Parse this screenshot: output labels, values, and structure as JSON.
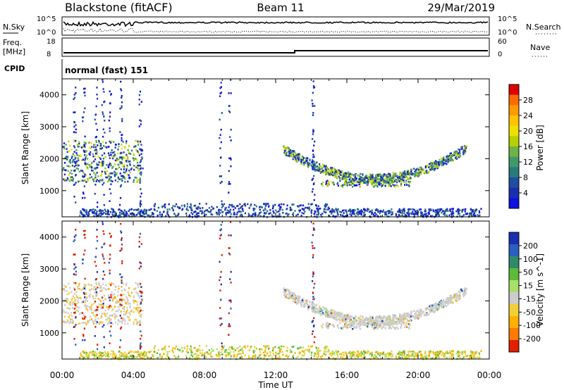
{
  "header": {
    "title": "Blackstone (fitACF)",
    "beam": "Beam 11",
    "date": "29/Mar/2019"
  },
  "noise_panel": {
    "left_label": "N.Sky",
    "right_label": "N.Search",
    "left_ticks": [
      "10^5",
      "10^0"
    ],
    "right_ticks": [
      "10^5",
      "10^0"
    ]
  },
  "freq_panel": {
    "label_line1": "Freq.",
    "label_line2": "[MHz]",
    "ticks": [
      "18",
      "8"
    ],
    "right_label": "Nave",
    "right_ticks": [
      "60",
      "0"
    ]
  },
  "cpid": {
    "label": "CPID",
    "value": "normal (fast) 151"
  },
  "axes": {
    "ylabel": "Slant Range [km]",
    "xlabel": "Time UT",
    "yticks": [
      "4000",
      "3000",
      "2000",
      "1000"
    ],
    "xticks": [
      "00:00",
      "04:00",
      "08:00",
      "12:00",
      "16:00",
      "20:00",
      "00:00"
    ]
  },
  "power_scale": {
    "label": "Power [dB]",
    "ticks": [
      "28",
      "24",
      "20",
      "16",
      "12",
      "8",
      "4"
    ],
    "colors": [
      "#e10000",
      "#ff6a00",
      "#ff9a00",
      "#ffc400",
      "#efe000",
      "#b8d000",
      "#6fb24a",
      "#3f9a6a",
      "#2a7a7a",
      "#1f4f9f",
      "#1a2fb0",
      "#1010e0"
    ]
  },
  "velocity_scale": {
    "label": "Velocity [m s^-1]",
    "ticks": [
      "200",
      "100",
      "50",
      "15",
      "-15",
      "-50",
      "-100",
      "-200"
    ],
    "colors": [
      "#1a2fb0",
      "#2a5fbf",
      "#2e8a6a",
      "#5dbb3c",
      "#a8e06a",
      "#cccccc",
      "#f2d03a",
      "#ffb000",
      "#ff7a00",
      "#e02000"
    ]
  },
  "chart_data": [
    {
      "type": "heatmap",
      "title": "Power",
      "xlabel": "Time UT",
      "ylabel": "Slant Range [km]",
      "xlim": [
        "00:00",
        "24:00"
      ],
      "ylim": [
        180,
        4500
      ],
      "colorbar_label": "Power [dB]",
      "colorbar_range": [
        0,
        30
      ]
    },
    {
      "type": "heatmap",
      "title": "Velocity",
      "xlabel": "Time UT",
      "ylabel": "Slant Range [km]",
      "xlim": [
        "00:00",
        "24:00"
      ],
      "ylim": [
        180,
        4500
      ],
      "colorbar_label": "Velocity [m s^-1]",
      "colorbar_range": [
        -250,
        250
      ]
    }
  ]
}
